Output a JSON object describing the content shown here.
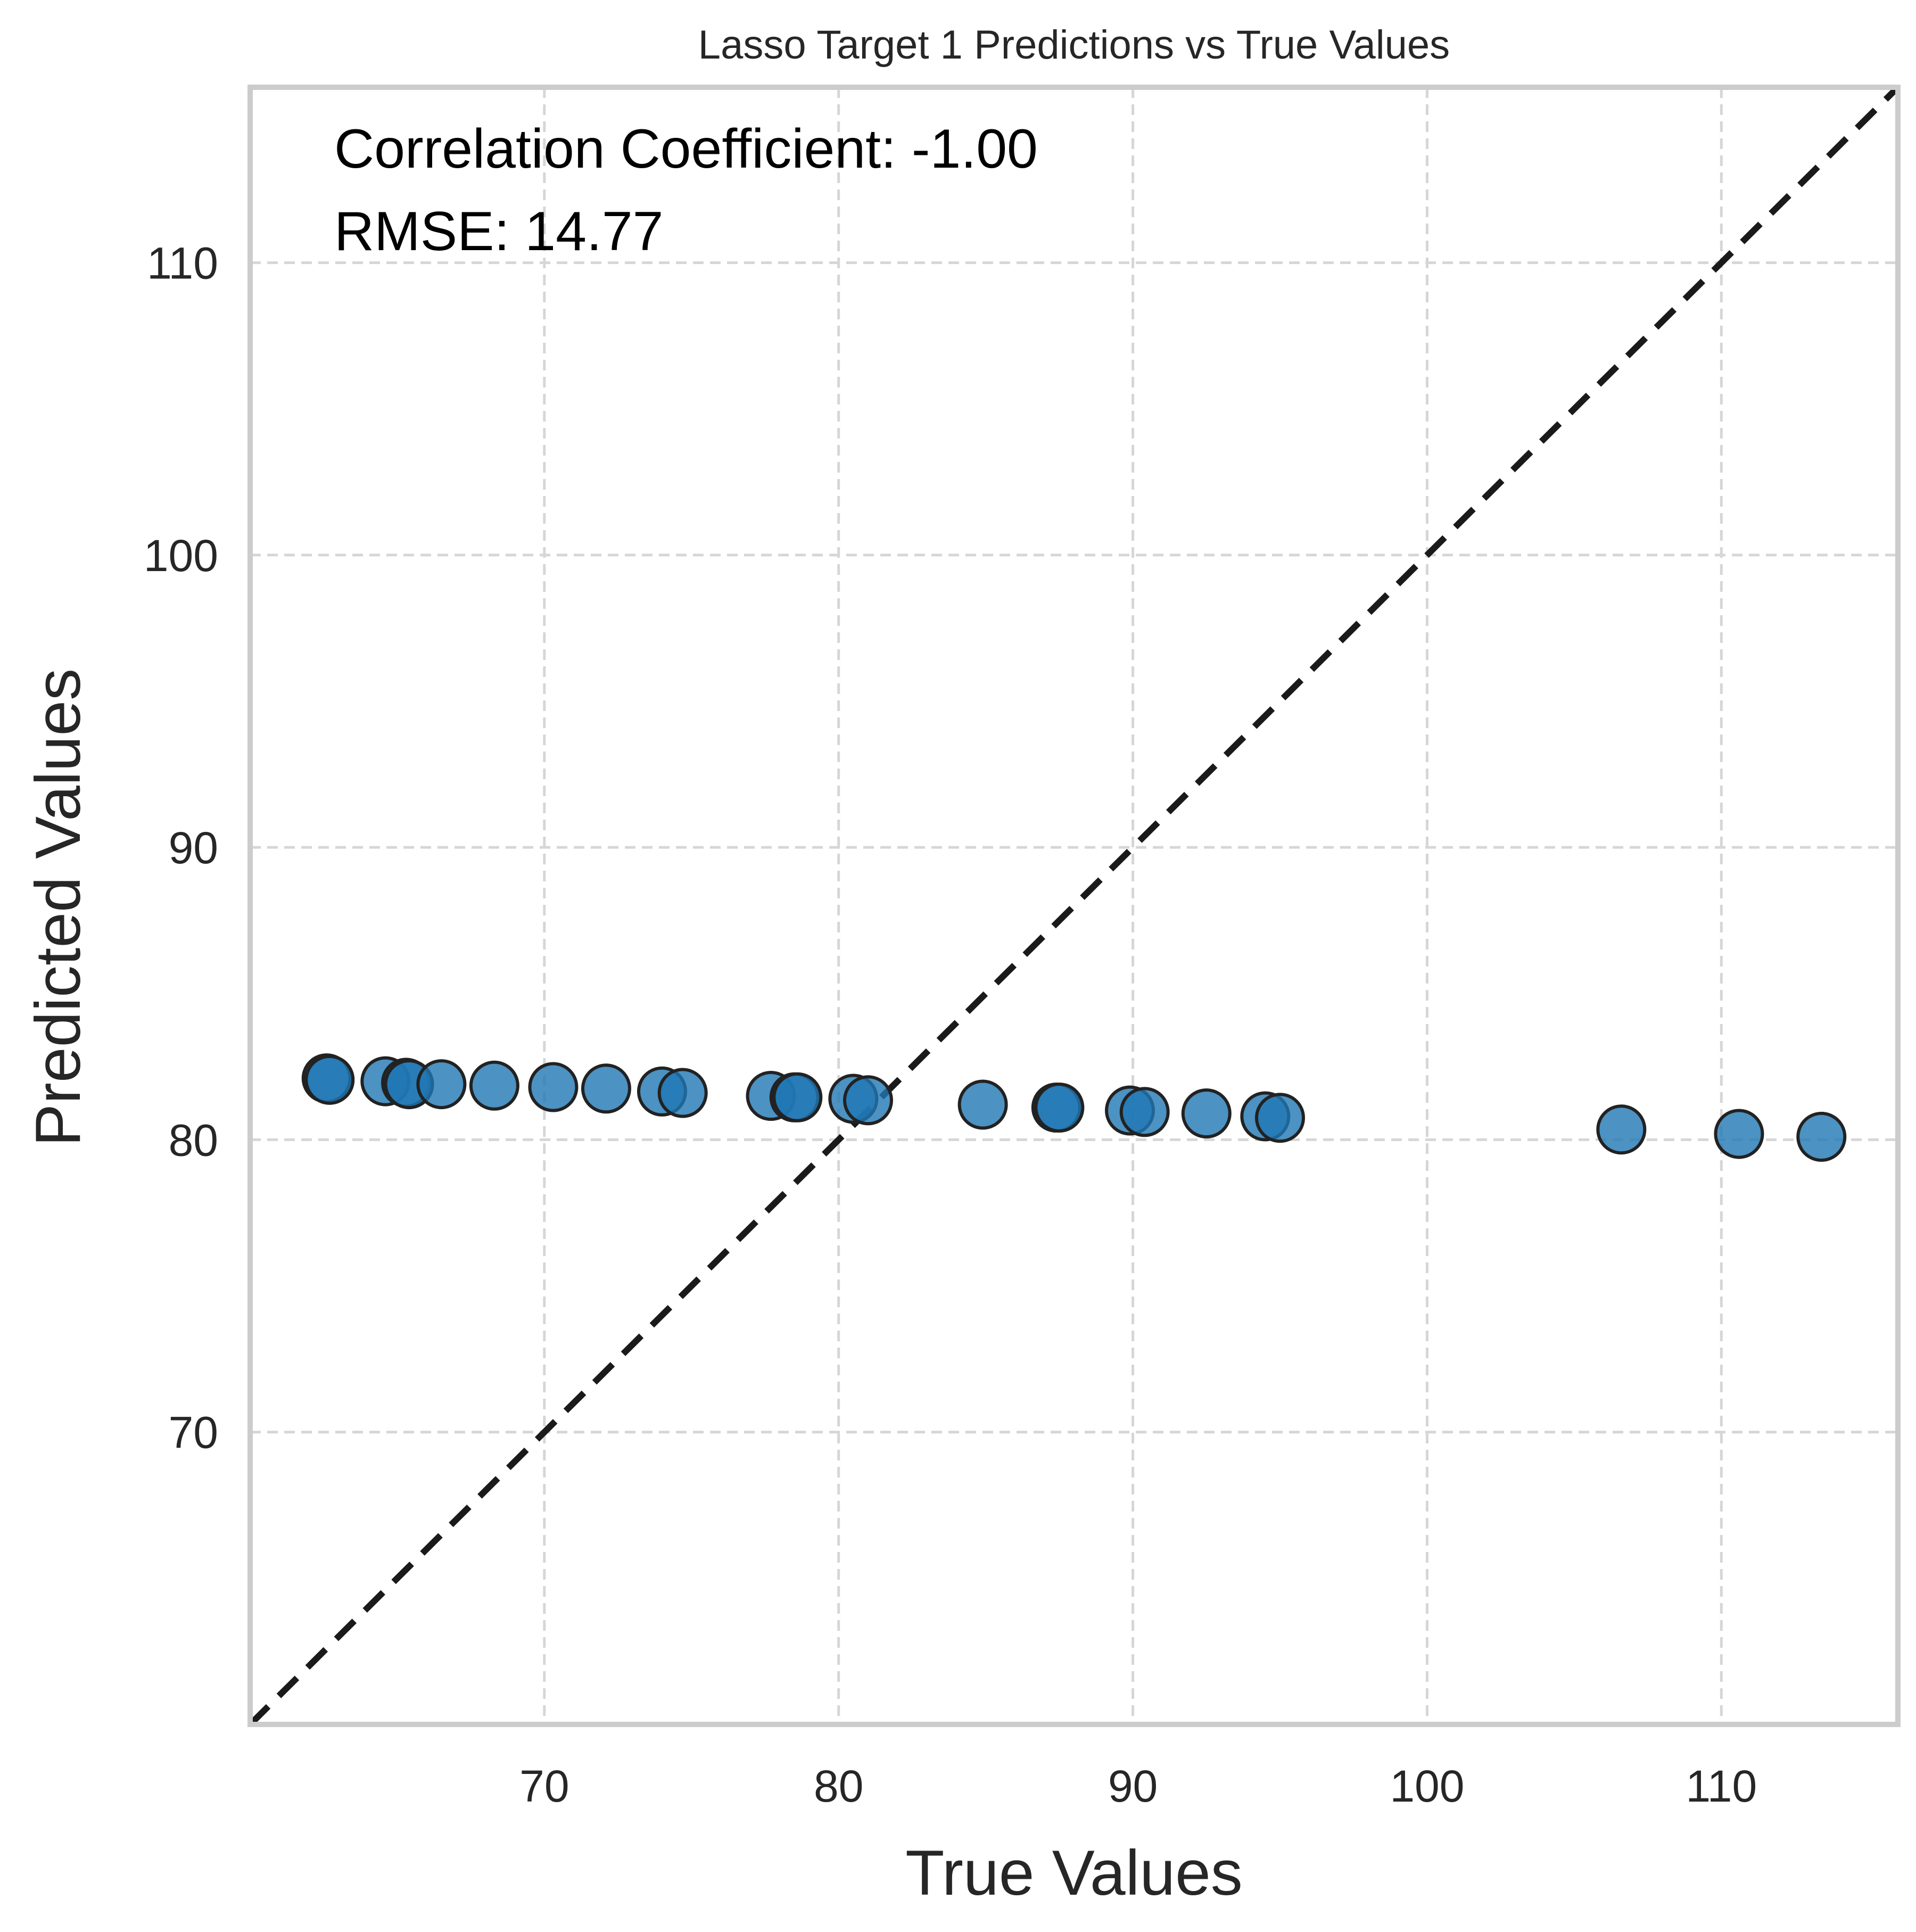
{
  "chart_data": {
    "type": "scatter",
    "title": "Lasso Target 1 Predictions vs True Values",
    "xlabel": "True Values",
    "ylabel": "Predicted Values",
    "xlim": [
      60,
      116
    ],
    "ylim": [
      60,
      116
    ],
    "xticks": [
      70,
      80,
      90,
      100,
      110
    ],
    "yticks": [
      70,
      80,
      90,
      100,
      110
    ],
    "grid": true,
    "grid_style": "dashed",
    "reference_line": {
      "from": [
        60,
        60
      ],
      "to": [
        116,
        116
      ],
      "style": "dashed",
      "color": "#1a1a1a"
    },
    "annotations": [
      "Correlation Coefficient: -1.00",
      "RMSE: 14.77"
    ],
    "marker_color": "#1f77b4",
    "marker_edge_color": "#222222",
    "series": [
      {
        "points": [
          {
            "x": 62.6,
            "y": 82.1
          },
          {
            "x": 62.7,
            "y": 82.05
          },
          {
            "x": 64.6,
            "y": 82.0
          },
          {
            "x": 65.3,
            "y": 81.95
          },
          {
            "x": 65.4,
            "y": 81.9
          },
          {
            "x": 66.5,
            "y": 81.9
          },
          {
            "x": 68.3,
            "y": 81.85
          },
          {
            "x": 70.3,
            "y": 81.8
          },
          {
            "x": 72.1,
            "y": 81.75
          },
          {
            "x": 74.0,
            "y": 81.65
          },
          {
            "x": 74.7,
            "y": 81.6
          },
          {
            "x": 77.7,
            "y": 81.5
          },
          {
            "x": 78.5,
            "y": 81.45
          },
          {
            "x": 78.6,
            "y": 81.45
          },
          {
            "x": 80.5,
            "y": 81.4
          },
          {
            "x": 81.0,
            "y": 81.35
          },
          {
            "x": 84.9,
            "y": 81.2
          },
          {
            "x": 87.4,
            "y": 81.1
          },
          {
            "x": 87.5,
            "y": 81.1
          },
          {
            "x": 89.9,
            "y": 81.0
          },
          {
            "x": 90.4,
            "y": 80.95
          },
          {
            "x": 92.5,
            "y": 80.9
          },
          {
            "x": 94.5,
            "y": 80.8
          },
          {
            "x": 95.0,
            "y": 80.75
          },
          {
            "x": 106.6,
            "y": 80.35
          },
          {
            "x": 110.6,
            "y": 80.2
          },
          {
            "x": 113.4,
            "y": 80.1
          }
        ]
      }
    ]
  }
}
